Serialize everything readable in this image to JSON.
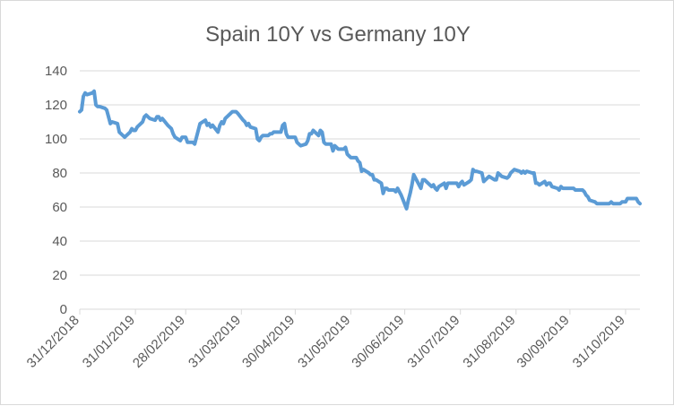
{
  "chart_data": {
    "type": "line",
    "title": "Spain 10Y vs Germany 10Y",
    "xlabel": "",
    "ylabel": "",
    "ylim": [
      0,
      140
    ],
    "yticks": [
      0,
      20,
      40,
      60,
      80,
      100,
      120,
      140
    ],
    "xlim": [
      "2018-12-31",
      "2019-11-08"
    ],
    "xtick_labels": [
      "31/12/2018",
      "31/01/2019",
      "28/02/2019",
      "31/03/2019",
      "30/04/2019",
      "31/05/2019",
      "30/06/2019",
      "31/07/2019",
      "31/08/2019",
      "30/09/2019",
      "31/10/2019"
    ],
    "grid": "horizontal",
    "legend": "none",
    "series": [
      {
        "color": "#5b9bd5",
        "points": [
          [
            "2018-12-31",
            116
          ],
          [
            "2019-01-01",
            117
          ],
          [
            "2019-01-02",
            125
          ],
          [
            "2019-01-03",
            127
          ],
          [
            "2019-01-04",
            126
          ],
          [
            "2019-01-07",
            127
          ],
          [
            "2019-01-08",
            128
          ],
          [
            "2019-01-09",
            120
          ],
          [
            "2019-01-10",
            119
          ],
          [
            "2019-01-11",
            119
          ],
          [
            "2019-01-14",
            118
          ],
          [
            "2019-01-15",
            117
          ],
          [
            "2019-01-16",
            113
          ],
          [
            "2019-01-17",
            109
          ],
          [
            "2019-01-18",
            110
          ],
          [
            "2019-01-21",
            109
          ],
          [
            "2019-01-22",
            104
          ],
          [
            "2019-01-23",
            103
          ],
          [
            "2019-01-24",
            102
          ],
          [
            "2019-01-25",
            101
          ],
          [
            "2019-01-28",
            104
          ],
          [
            "2019-01-29",
            106
          ],
          [
            "2019-01-30",
            105
          ],
          [
            "2019-01-31",
            105
          ],
          [
            "2019-02-01",
            107
          ],
          [
            "2019-02-04",
            110
          ],
          [
            "2019-02-05",
            113
          ],
          [
            "2019-02-06",
            114
          ],
          [
            "2019-02-07",
            113
          ],
          [
            "2019-02-08",
            112
          ],
          [
            "2019-02-11",
            111
          ],
          [
            "2019-02-12",
            113
          ],
          [
            "2019-02-13",
            113
          ],
          [
            "2019-02-14",
            111
          ],
          [
            "2019-02-15",
            112
          ],
          [
            "2019-02-18",
            108
          ],
          [
            "2019-02-19",
            107
          ],
          [
            "2019-02-20",
            106
          ],
          [
            "2019-02-21",
            103
          ],
          [
            "2019-02-22",
            101
          ],
          [
            "2019-02-25",
            99
          ],
          [
            "2019-02-26",
            101
          ],
          [
            "2019-02-27",
            101
          ],
          [
            "2019-02-28",
            101
          ],
          [
            "2019-03-01",
            98
          ],
          [
            "2019-03-04",
            98
          ],
          [
            "2019-03-05",
            97
          ],
          [
            "2019-03-06",
            101
          ],
          [
            "2019-03-07",
            105
          ],
          [
            "2019-03-08",
            109
          ],
          [
            "2019-03-11",
            111
          ],
          [
            "2019-03-12",
            108
          ],
          [
            "2019-03-13",
            109
          ],
          [
            "2019-03-14",
            107
          ],
          [
            "2019-03-15",
            108
          ],
          [
            "2019-03-18",
            104
          ],
          [
            "2019-03-19",
            108
          ],
          [
            "2019-03-20",
            110
          ],
          [
            "2019-03-21",
            109
          ],
          [
            "2019-03-22",
            112
          ],
          [
            "2019-03-25",
            115
          ],
          [
            "2019-03-26",
            116
          ],
          [
            "2019-03-27",
            116
          ],
          [
            "2019-03-28",
            116
          ],
          [
            "2019-03-29",
            115
          ],
          [
            "2019-04-01",
            111
          ],
          [
            "2019-04-02",
            110
          ],
          [
            "2019-04-03",
            108
          ],
          [
            "2019-04-04",
            109
          ],
          [
            "2019-04-05",
            107
          ],
          [
            "2019-04-08",
            106
          ],
          [
            "2019-04-09",
            100
          ],
          [
            "2019-04-10",
            99
          ],
          [
            "2019-04-11",
            101
          ],
          [
            "2019-04-12",
            102
          ],
          [
            "2019-04-15",
            102
          ],
          [
            "2019-04-16",
            103
          ],
          [
            "2019-04-17",
            103
          ],
          [
            "2019-04-18",
            104
          ],
          [
            "2019-04-19",
            104
          ],
          [
            "2019-04-22",
            104
          ],
          [
            "2019-04-23",
            108
          ],
          [
            "2019-04-24",
            109
          ],
          [
            "2019-04-25",
            103
          ],
          [
            "2019-04-26",
            101
          ],
          [
            "2019-04-29",
            101
          ],
          [
            "2019-04-30",
            101
          ],
          [
            "2019-05-01",
            98
          ],
          [
            "2019-05-02",
            97
          ],
          [
            "2019-05-03",
            96
          ],
          [
            "2019-05-06",
            97
          ],
          [
            "2019-05-07",
            99
          ],
          [
            "2019-05-08",
            103
          ],
          [
            "2019-05-09",
            103
          ],
          [
            "2019-05-10",
            105
          ],
          [
            "2019-05-13",
            102
          ],
          [
            "2019-05-14",
            105
          ],
          [
            "2019-05-15",
            104
          ],
          [
            "2019-05-16",
            98
          ],
          [
            "2019-05-17",
            97
          ],
          [
            "2019-05-20",
            97
          ],
          [
            "2019-05-21",
            93
          ],
          [
            "2019-05-22",
            96
          ],
          [
            "2019-05-23",
            95
          ],
          [
            "2019-05-24",
            94
          ],
          [
            "2019-05-27",
            94
          ],
          [
            "2019-05-28",
            95
          ],
          [
            "2019-05-29",
            91
          ],
          [
            "2019-05-30",
            90
          ],
          [
            "2019-05-31",
            89
          ],
          [
            "2019-06-03",
            89
          ],
          [
            "2019-06-04",
            87
          ],
          [
            "2019-06-05",
            86
          ],
          [
            "2019-06-06",
            81
          ],
          [
            "2019-06-07",
            82
          ],
          [
            "2019-06-10",
            80
          ],
          [
            "2019-06-11",
            79
          ],
          [
            "2019-06-12",
            79
          ],
          [
            "2019-06-13",
            76
          ],
          [
            "2019-06-14",
            76
          ],
          [
            "2019-06-17",
            74
          ],
          [
            "2019-06-18",
            68
          ],
          [
            "2019-06-19",
            71
          ],
          [
            "2019-06-20",
            71
          ],
          [
            "2019-06-21",
            70
          ],
          [
            "2019-06-24",
            70
          ],
          [
            "2019-06-25",
            69
          ],
          [
            "2019-06-26",
            71
          ],
          [
            "2019-06-27",
            69
          ],
          [
            "2019-06-28",
            67
          ],
          [
            "2019-07-01",
            59
          ],
          [
            "2019-07-02",
            64
          ],
          [
            "2019-07-03",
            68
          ],
          [
            "2019-07-04",
            73
          ],
          [
            "2019-07-05",
            79
          ],
          [
            "2019-07-08",
            73
          ],
          [
            "2019-07-09",
            71
          ],
          [
            "2019-07-10",
            76
          ],
          [
            "2019-07-11",
            76
          ],
          [
            "2019-07-12",
            75
          ],
          [
            "2019-07-15",
            72
          ],
          [
            "2019-07-16",
            73
          ],
          [
            "2019-07-17",
            71
          ],
          [
            "2019-07-18",
            70
          ],
          [
            "2019-07-19",
            72
          ],
          [
            "2019-07-22",
            74
          ],
          [
            "2019-07-23",
            71
          ],
          [
            "2019-07-24",
            74
          ],
          [
            "2019-07-25",
            74
          ],
          [
            "2019-07-26",
            74
          ],
          [
            "2019-07-29",
            74
          ],
          [
            "2019-07-30",
            72
          ],
          [
            "2019-07-31",
            74
          ],
          [
            "2019-08-01",
            75
          ],
          [
            "2019-08-02",
            73
          ],
          [
            "2019-08-05",
            75
          ],
          [
            "2019-08-06",
            76
          ],
          [
            "2019-08-07",
            82
          ],
          [
            "2019-08-08",
            81
          ],
          [
            "2019-08-09",
            81
          ],
          [
            "2019-08-12",
            80
          ],
          [
            "2019-08-13",
            75
          ],
          [
            "2019-08-14",
            76
          ],
          [
            "2019-08-15",
            77
          ],
          [
            "2019-08-16",
            78
          ],
          [
            "2019-08-19",
            76
          ],
          [
            "2019-08-20",
            76
          ],
          [
            "2019-08-21",
            80
          ],
          [
            "2019-08-22",
            79
          ],
          [
            "2019-08-23",
            78
          ],
          [
            "2019-08-26",
            77
          ],
          [
            "2019-08-27",
            78
          ],
          [
            "2019-08-28",
            80
          ],
          [
            "2019-08-29",
            81
          ],
          [
            "2019-08-30",
            82
          ],
          [
            "2019-09-02",
            81
          ],
          [
            "2019-09-03",
            80
          ],
          [
            "2019-09-04",
            81
          ],
          [
            "2019-09-05",
            80
          ],
          [
            "2019-09-06",
            81
          ],
          [
            "2019-09-09",
            80
          ],
          [
            "2019-09-10",
            80
          ],
          [
            "2019-09-11",
            74
          ],
          [
            "2019-09-12",
            74
          ],
          [
            "2019-09-13",
            73
          ],
          [
            "2019-09-16",
            75
          ],
          [
            "2019-09-17",
            73
          ],
          [
            "2019-09-18",
            74
          ],
          [
            "2019-09-19",
            74
          ],
          [
            "2019-09-20",
            72
          ],
          [
            "2019-09-23",
            71
          ],
          [
            "2019-09-24",
            70
          ],
          [
            "2019-09-25",
            72
          ],
          [
            "2019-09-26",
            71
          ],
          [
            "2019-09-27",
            71
          ],
          [
            "2019-09-30",
            71
          ],
          [
            "2019-10-01",
            71
          ],
          [
            "2019-10-02",
            71
          ],
          [
            "2019-10-03",
            70
          ],
          [
            "2019-10-04",
            70
          ],
          [
            "2019-10-07",
            70
          ],
          [
            "2019-10-08",
            69
          ],
          [
            "2019-10-09",
            67
          ],
          [
            "2019-10-10",
            66
          ],
          [
            "2019-10-11",
            64
          ],
          [
            "2019-10-14",
            63
          ],
          [
            "2019-10-15",
            62
          ],
          [
            "2019-10-16",
            62
          ],
          [
            "2019-10-17",
            62
          ],
          [
            "2019-10-18",
            62
          ],
          [
            "2019-10-21",
            62
          ],
          [
            "2019-10-22",
            62
          ],
          [
            "2019-10-23",
            63
          ],
          [
            "2019-10-24",
            62
          ],
          [
            "2019-10-25",
            62
          ],
          [
            "2019-10-28",
            62
          ],
          [
            "2019-10-29",
            63
          ],
          [
            "2019-10-30",
            63
          ],
          [
            "2019-10-31",
            63
          ],
          [
            "2019-11-01",
            65
          ],
          [
            "2019-11-04",
            65
          ],
          [
            "2019-11-05",
            65
          ],
          [
            "2019-11-06",
            65
          ],
          [
            "2019-11-07",
            63
          ],
          [
            "2019-11-08",
            62
          ]
        ]
      }
    ]
  },
  "colors": {
    "line": "#5b9bd5",
    "grid": "#d9d9d9",
    "text": "#595959"
  }
}
